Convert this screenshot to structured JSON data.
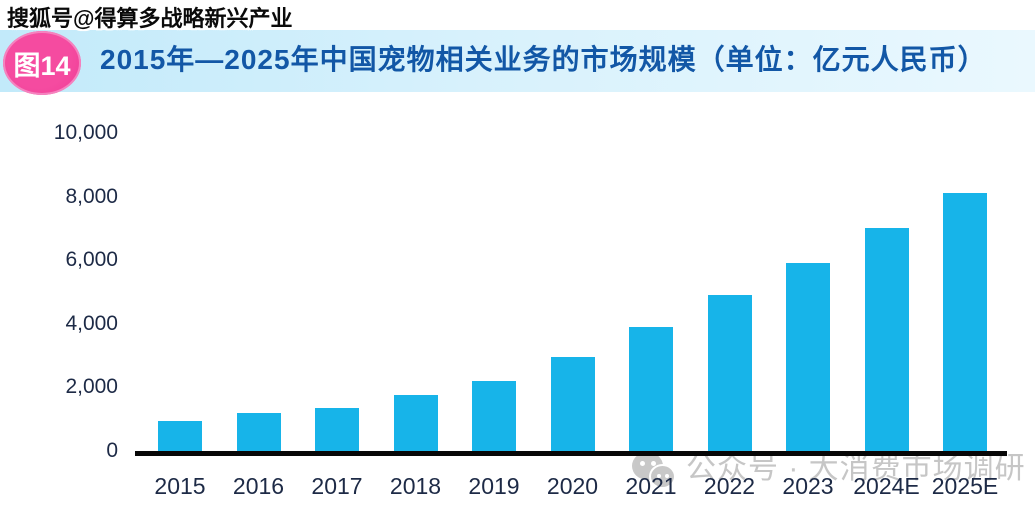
{
  "page": {
    "sohu_watermark": "搜狐号@得算多战略新兴产业",
    "figure_badge": "图14",
    "header_title": "2015年—2025年中国宠物相关业务的市场规模（单位：亿元人民币）",
    "bottom_watermark": "公众号 · 大消费市场调研"
  },
  "colors": {
    "bar": "#17b4e9",
    "header_band_left": "#c2eafa",
    "header_band_right": "#eaf8fe",
    "title_text": "#1257a6",
    "badge_pink": "#f2429c",
    "axis_text": "#1d2a46",
    "axis_line": "#070707",
    "watermark_gray": "#c3c3c3"
  },
  "chart_data": {
    "type": "bar",
    "title": "2015年—2025年中国宠物相关业务的市场规模（单位：亿元人民币）",
    "unit": "亿元人民币",
    "categories": [
      "2015",
      "2016",
      "2017",
      "2018",
      "2019",
      "2020",
      "2021",
      "2022",
      "2023",
      "2024E",
      "2025E"
    ],
    "values": [
      950,
      1200,
      1350,
      1750,
      2200,
      2950,
      3900,
      4900,
      5900,
      7000,
      8100
    ],
    "ylim": [
      0,
      10000
    ],
    "yticks": [
      0,
      2000,
      4000,
      6000,
      8000,
      10000
    ],
    "ytick_labels": [
      "0",
      "2,000",
      "4,000",
      "6,000",
      "8,000",
      "10,000"
    ],
    "grid": false,
    "legend": "none",
    "bar_color": "#17b4e9"
  }
}
